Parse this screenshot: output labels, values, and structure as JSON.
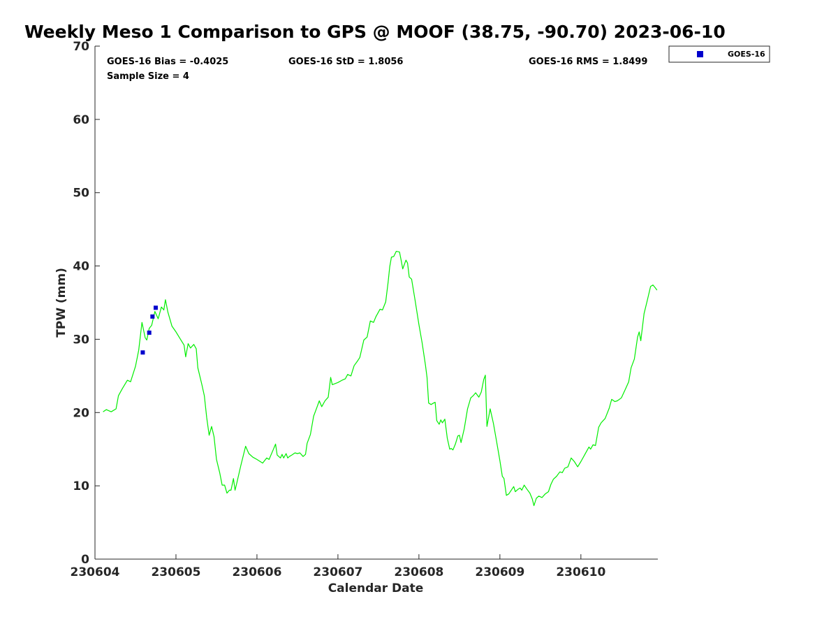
{
  "chart_data": {
    "type": "line",
    "title": "Weekly Meso 1 Comparison to GPS @ MOOF (38.75, -90.70) 2023-06-10",
    "xlabel": "Calendar Date",
    "ylabel": "TPW (mm)",
    "x_ticks": [
      "230604",
      "230605",
      "230606",
      "230607",
      "230608",
      "230609",
      "230610"
    ],
    "x_tick_values": [
      0,
      1,
      2,
      3,
      4,
      5,
      6
    ],
    "xlim": [
      0,
      6.95
    ],
    "ylim": [
      0,
      70
    ],
    "y_ticks": [
      0,
      10,
      20,
      30,
      40,
      50,
      60,
      70
    ],
    "grid": false,
    "legend_position": "top-right",
    "stats": {
      "bias": "GOES-16 Bias = -0.4025",
      "std": "GOES-16 StD = 1.8056",
      "rms": "GOES-16 RMS = 1.8499",
      "sample_size": "Sample Size = 4"
    },
    "series": [
      {
        "name": "GPS",
        "color": "#00ee00",
        "style": "line",
        "points": [
          [
            0.1,
            20.1
          ],
          [
            0.14,
            20.4
          ],
          [
            0.2,
            20.1
          ],
          [
            0.26,
            20.5
          ],
          [
            0.29,
            22.3
          ],
          [
            0.34,
            23.3
          ],
          [
            0.4,
            24.4
          ],
          [
            0.44,
            24.2
          ],
          [
            0.5,
            26.3
          ],
          [
            0.54,
            28.5
          ],
          [
            0.58,
            32.3
          ],
          [
            0.62,
            30.2
          ],
          [
            0.64,
            29.9
          ],
          [
            0.67,
            31.5
          ],
          [
            0.7,
            31.9
          ],
          [
            0.74,
            33.8
          ],
          [
            0.78,
            32.8
          ],
          [
            0.82,
            34.4
          ],
          [
            0.85,
            34.0
          ],
          [
            0.87,
            35.4
          ],
          [
            0.9,
            33.7
          ],
          [
            0.95,
            31.8
          ],
          [
            1.0,
            31.0
          ],
          [
            1.05,
            30.1
          ],
          [
            1.1,
            29.2
          ],
          [
            1.12,
            27.6
          ],
          [
            1.15,
            29.4
          ],
          [
            1.18,
            28.8
          ],
          [
            1.22,
            29.3
          ],
          [
            1.25,
            28.7
          ],
          [
            1.27,
            26.1
          ],
          [
            1.32,
            23.8
          ],
          [
            1.35,
            22.3
          ],
          [
            1.38,
            19.3
          ],
          [
            1.41,
            16.9
          ],
          [
            1.44,
            18.1
          ],
          [
            1.47,
            16.7
          ],
          [
            1.5,
            13.6
          ],
          [
            1.54,
            11.8
          ],
          [
            1.57,
            10.1
          ],
          [
            1.6,
            10.1
          ],
          [
            1.63,
            9.0
          ],
          [
            1.66,
            9.4
          ],
          [
            1.68,
            9.4
          ],
          [
            1.71,
            11.0
          ],
          [
            1.73,
            9.4
          ],
          [
            1.75,
            10.3
          ],
          [
            1.8,
            12.7
          ],
          [
            1.86,
            15.4
          ],
          [
            1.9,
            14.4
          ],
          [
            1.95,
            13.9
          ],
          [
            2.0,
            13.6
          ],
          [
            2.07,
            13.1
          ],
          [
            2.12,
            13.8
          ],
          [
            2.15,
            13.6
          ],
          [
            2.2,
            14.9
          ],
          [
            2.23,
            15.7
          ],
          [
            2.25,
            14.2
          ],
          [
            2.29,
            13.8
          ],
          [
            2.31,
            14.3
          ],
          [
            2.33,
            13.8
          ],
          [
            2.36,
            14.4
          ],
          [
            2.38,
            13.8
          ],
          [
            2.4,
            14.0
          ],
          [
            2.43,
            14.2
          ],
          [
            2.47,
            14.5
          ],
          [
            2.5,
            14.4
          ],
          [
            2.53,
            14.5
          ],
          [
            2.57,
            14.0
          ],
          [
            2.6,
            14.3
          ],
          [
            2.62,
            15.8
          ],
          [
            2.66,
            17.0
          ],
          [
            2.7,
            19.5
          ],
          [
            2.74,
            20.7
          ],
          [
            2.77,
            21.6
          ],
          [
            2.8,
            20.8
          ],
          [
            2.84,
            21.6
          ],
          [
            2.88,
            22.1
          ],
          [
            2.91,
            24.8
          ],
          [
            2.93,
            23.8
          ],
          [
            3.0,
            24.1
          ],
          [
            3.05,
            24.4
          ],
          [
            3.09,
            24.6
          ],
          [
            3.12,
            25.2
          ],
          [
            3.16,
            25.0
          ],
          [
            3.2,
            26.4
          ],
          [
            3.24,
            27.0
          ],
          [
            3.27,
            27.5
          ],
          [
            3.32,
            29.9
          ],
          [
            3.36,
            30.3
          ],
          [
            3.4,
            32.5
          ],
          [
            3.44,
            32.3
          ],
          [
            3.47,
            33.1
          ],
          [
            3.52,
            34.1
          ],
          [
            3.55,
            34.0
          ],
          [
            3.59,
            35.1
          ],
          [
            3.62,
            37.8
          ],
          [
            3.64,
            39.9
          ],
          [
            3.66,
            41.2
          ],
          [
            3.69,
            41.3
          ],
          [
            3.72,
            42.0
          ],
          [
            3.76,
            41.9
          ],
          [
            3.78,
            40.8
          ],
          [
            3.8,
            39.6
          ],
          [
            3.84,
            40.8
          ],
          [
            3.86,
            40.4
          ],
          [
            3.88,
            38.5
          ],
          [
            3.91,
            38.2
          ],
          [
            3.95,
            35.5
          ],
          [
            4.0,
            32.0
          ],
          [
            4.04,
            29.5
          ],
          [
            4.08,
            26.5
          ],
          [
            4.1,
            24.8
          ],
          [
            4.12,
            21.3
          ],
          [
            4.15,
            21.1
          ],
          [
            4.18,
            21.3
          ],
          [
            4.2,
            21.4
          ],
          [
            4.22,
            18.9
          ],
          [
            4.25,
            18.4
          ],
          [
            4.27,
            19.0
          ],
          [
            4.29,
            18.6
          ],
          [
            4.32,
            19.1
          ],
          [
            4.35,
            16.5
          ],
          [
            4.38,
            15.0
          ],
          [
            4.4,
            15.1
          ],
          [
            4.42,
            14.9
          ],
          [
            4.45,
            15.7
          ],
          [
            4.48,
            16.8
          ],
          [
            4.5,
            16.9
          ],
          [
            4.52,
            15.9
          ],
          [
            4.56,
            17.8
          ],
          [
            4.6,
            20.5
          ],
          [
            4.64,
            22.0
          ],
          [
            4.67,
            22.3
          ],
          [
            4.7,
            22.7
          ],
          [
            4.74,
            22.1
          ],
          [
            4.77,
            22.8
          ],
          [
            4.8,
            24.5
          ],
          [
            4.82,
            25.1
          ],
          [
            4.84,
            18.1
          ],
          [
            4.88,
            20.5
          ],
          [
            4.92,
            18.5
          ],
          [
            4.96,
            16.0
          ],
          [
            5.0,
            13.4
          ],
          [
            5.03,
            11.3
          ],
          [
            5.05,
            11.0
          ],
          [
            5.08,
            8.7
          ],
          [
            5.11,
            8.9
          ],
          [
            5.14,
            9.4
          ],
          [
            5.17,
            9.9
          ],
          [
            5.19,
            9.2
          ],
          [
            5.22,
            9.5
          ],
          [
            5.25,
            9.7
          ],
          [
            5.27,
            9.4
          ],
          [
            5.3,
            10.1
          ],
          [
            5.33,
            9.6
          ],
          [
            5.37,
            9.0
          ],
          [
            5.4,
            8.2
          ],
          [
            5.42,
            7.3
          ],
          [
            5.45,
            8.3
          ],
          [
            5.48,
            8.6
          ],
          [
            5.52,
            8.4
          ],
          [
            5.56,
            8.9
          ],
          [
            5.6,
            9.2
          ],
          [
            5.63,
            10.2
          ],
          [
            5.66,
            10.9
          ],
          [
            5.7,
            11.3
          ],
          [
            5.74,
            11.9
          ],
          [
            5.77,
            11.8
          ],
          [
            5.8,
            12.4
          ],
          [
            5.84,
            12.6
          ],
          [
            5.88,
            13.8
          ],
          [
            5.92,
            13.3
          ],
          [
            5.96,
            12.6
          ],
          [
            6.0,
            13.3
          ],
          [
            6.05,
            14.3
          ],
          [
            6.1,
            15.3
          ],
          [
            6.12,
            15.0
          ],
          [
            6.15,
            15.6
          ],
          [
            6.18,
            15.5
          ],
          [
            6.22,
            18.0
          ],
          [
            6.25,
            18.6
          ],
          [
            6.3,
            19.2
          ],
          [
            6.35,
            20.6
          ],
          [
            6.38,
            21.8
          ],
          [
            6.42,
            21.5
          ],
          [
            6.45,
            21.6
          ],
          [
            6.5,
            22.0
          ],
          [
            6.55,
            23.2
          ],
          [
            6.59,
            24.2
          ],
          [
            6.62,
            26.1
          ],
          [
            6.66,
            27.3
          ],
          [
            6.7,
            30.3
          ],
          [
            6.72,
            31.0
          ],
          [
            6.74,
            29.8
          ],
          [
            6.78,
            33.5
          ],
          [
            6.82,
            35.3
          ],
          [
            6.86,
            37.2
          ],
          [
            6.89,
            37.4
          ],
          [
            6.92,
            37.0
          ],
          [
            6.94,
            36.7
          ]
        ]
      },
      {
        "name": "GOES-16",
        "color": "#0000cc",
        "style": "markers",
        "points": [
          [
            0.59,
            28.2
          ],
          [
            0.67,
            30.9
          ],
          [
            0.71,
            33.1
          ],
          [
            0.75,
            34.3
          ]
        ]
      }
    ]
  }
}
